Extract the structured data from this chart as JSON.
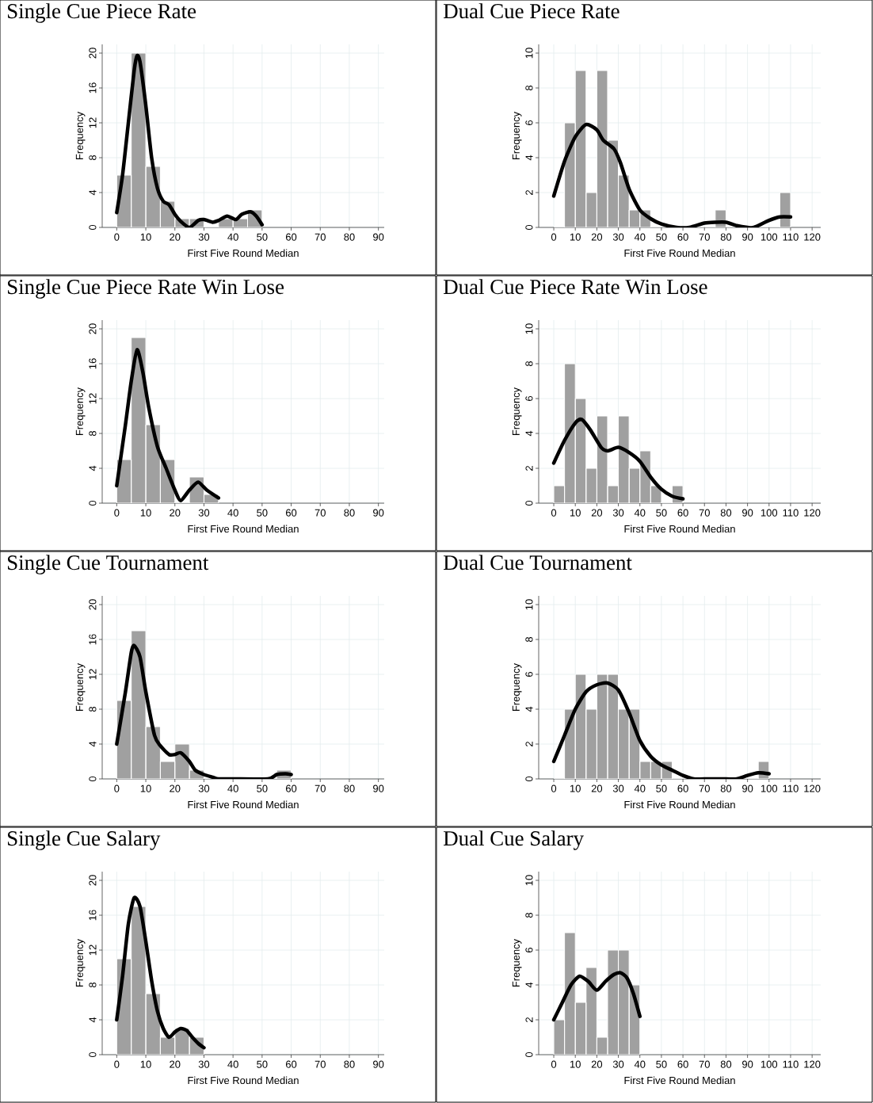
{
  "chart_data": [
    {
      "type": "histogram",
      "title": "Single Cue Piece Rate",
      "xlabel": "First Five Round Median",
      "ylabel": "Frequency",
      "xlim": [
        -5,
        92
      ],
      "ylim": [
        0,
        21
      ],
      "xticks": [
        0,
        10,
        20,
        30,
        40,
        50,
        60,
        70,
        80,
        90
      ],
      "yticks": [
        0,
        4,
        8,
        12,
        16,
        20
      ],
      "grid": true,
      "series": [
        {
          "color": "#a0a0a0",
          "bins": [
            0,
            5,
            10,
            15,
            20,
            25,
            30,
            35,
            40,
            45,
            50
          ],
          "values": [
            6,
            20,
            7,
            3,
            1,
            1,
            0,
            1,
            1,
            2
          ]
        },
        {
          "type": "line",
          "color": "#000000",
          "x": [
            0,
            2,
            4,
            6,
            7,
            8,
            10,
            12,
            14,
            16,
            18,
            20,
            22,
            25,
            28,
            30,
            33,
            35,
            38,
            41,
            43,
            46,
            48,
            50
          ],
          "values": [
            1.7,
            6,
            12,
            18,
            19.7,
            19,
            14,
            8,
            4.5,
            3,
            2.6,
            1.5,
            0.7,
            0,
            0.8,
            0.9,
            0.6,
            0.8,
            1.3,
            0.9,
            1.5,
            1.8,
            1.3,
            0.3
          ]
        }
      ]
    },
    {
      "type": "histogram",
      "title": "Dual Cue Piece Rate",
      "xlabel": "First Five Round Median",
      "ylabel": "Frequency",
      "xlim": [
        -7,
        124
      ],
      "ylim": [
        0,
        10.5
      ],
      "xticks": [
        0,
        10,
        20,
        30,
        40,
        50,
        60,
        70,
        80,
        90,
        100,
        110,
        120
      ],
      "yticks": [
        0,
        2,
        4,
        6,
        8,
        10
      ],
      "grid": true,
      "series": [
        {
          "color": "#a0a0a0",
          "bins": [
            0,
            5,
            10,
            15,
            20,
            25,
            30,
            35,
            40,
            45,
            50,
            55,
            60,
            65,
            70,
            75,
            80,
            85,
            90,
            95,
            100,
            105,
            110
          ],
          "values": [
            0,
            6,
            9,
            2,
            9,
            5,
            3,
            1,
            1,
            0,
            0,
            0,
            0,
            0,
            0,
            1,
            0,
            0,
            0,
            0,
            0,
            2
          ]
        },
        {
          "type": "line",
          "color": "#000000",
          "x": [
            0,
            5,
            10,
            15,
            20,
            23,
            28,
            31,
            35,
            40,
            45,
            50,
            57,
            63,
            70,
            75,
            80,
            85,
            90,
            93,
            100,
            105,
            110
          ],
          "values": [
            1.8,
            3.8,
            5.2,
            5.9,
            5.6,
            5.0,
            4.5,
            3.7,
            2.2,
            1.0,
            0.5,
            0.2,
            0,
            0,
            0.25,
            0.3,
            0.3,
            0.1,
            0,
            0,
            0.4,
            0.6,
            0.6
          ]
        }
      ]
    },
    {
      "type": "histogram",
      "title": "Single Cue Piece Rate Win Lose",
      "xlabel": "First Five Round Median",
      "ylabel": "Frequency",
      "xlim": [
        -5,
        92
      ],
      "ylim": [
        0,
        21
      ],
      "xticks": [
        0,
        10,
        20,
        30,
        40,
        50,
        60,
        70,
        80,
        90
      ],
      "yticks": [
        0,
        4,
        8,
        12,
        16,
        20
      ],
      "grid": true,
      "series": [
        {
          "color": "#a0a0a0",
          "bins": [
            0,
            5,
            10,
            15,
            20,
            25,
            30,
            35
          ],
          "values": [
            5,
            19,
            9,
            5,
            0,
            3,
            1
          ]
        },
        {
          "type": "line",
          "color": "#000000",
          "x": [
            0,
            3,
            5,
            7,
            9,
            11,
            14,
            17,
            20,
            22,
            25,
            28,
            31,
            35
          ],
          "values": [
            2,
            9,
            14,
            17.6,
            15,
            11,
            6.5,
            4,
            1.5,
            0.3,
            1.5,
            2.4,
            1.5,
            0.6
          ]
        }
      ]
    },
    {
      "type": "histogram",
      "title": "Dual Cue Piece Rate Win Lose",
      "xlabel": "First Five Round Median",
      "ylabel": "Frequency",
      "xlim": [
        -7,
        124
      ],
      "ylim": [
        0,
        10.5
      ],
      "xticks": [
        0,
        10,
        20,
        30,
        40,
        50,
        60,
        70,
        80,
        90,
        100,
        110,
        120
      ],
      "yticks": [
        0,
        2,
        4,
        6,
        8,
        10
      ],
      "grid": true,
      "series": [
        {
          "color": "#a0a0a0",
          "bins": [
            0,
            5,
            10,
            15,
            20,
            25,
            30,
            35,
            40,
            45,
            50,
            55,
            60
          ],
          "values": [
            1,
            8,
            6,
            2,
            5,
            1,
            5,
            2,
            3,
            1,
            0,
            1
          ]
        },
        {
          "type": "line",
          "color": "#000000",
          "x": [
            0,
            5,
            10,
            13,
            17,
            22,
            25,
            30,
            35,
            40,
            45,
            50,
            55,
            60
          ],
          "values": [
            2.3,
            3.6,
            4.6,
            4.8,
            4.2,
            3.2,
            3.0,
            3.2,
            2.9,
            2.4,
            1.5,
            0.8,
            0.4,
            0.25
          ]
        }
      ]
    },
    {
      "type": "histogram",
      "title": "Single Cue Tournament",
      "xlabel": "First Five Round Median",
      "ylabel": "Frequency",
      "xlim": [
        -5,
        92
      ],
      "ylim": [
        0,
        21
      ],
      "xticks": [
        0,
        10,
        20,
        30,
        40,
        50,
        60,
        70,
        80,
        90
      ],
      "yticks": [
        0,
        4,
        8,
        12,
        16,
        20
      ],
      "grid": true,
      "series": [
        {
          "color": "#a0a0a0",
          "bins": [
            0,
            5,
            10,
            15,
            20,
            25,
            30,
            35,
            40,
            45,
            50,
            55,
            60
          ],
          "values": [
            9,
            17,
            6,
            2,
            4,
            1,
            0,
            0,
            0,
            0,
            0,
            1
          ]
        },
        {
          "type": "line",
          "color": "#000000",
          "x": [
            0,
            3,
            5,
            6,
            8,
            10,
            13,
            15,
            18,
            20,
            22,
            25,
            27,
            30,
            33,
            35,
            40,
            52,
            55,
            58,
            60
          ],
          "values": [
            4,
            10,
            14.5,
            15.3,
            14,
            10,
            5,
            3.8,
            2.8,
            2.8,
            3,
            2,
            1,
            0.5,
            0.2,
            0,
            0,
            0,
            0.5,
            0.6,
            0.5
          ]
        }
      ]
    },
    {
      "type": "histogram",
      "title": "Dual Cue Tournament",
      "xlabel": "First Five Round Median",
      "ylabel": "Frequency",
      "xlim": [
        -7,
        124
      ],
      "ylim": [
        0,
        10.5
      ],
      "xticks": [
        0,
        10,
        20,
        30,
        40,
        50,
        60,
        70,
        80,
        90,
        100,
        110,
        120
      ],
      "yticks": [
        0,
        2,
        4,
        6,
        8,
        10
      ],
      "grid": true,
      "series": [
        {
          "color": "#a0a0a0",
          "bins": [
            0,
            5,
            10,
            15,
            20,
            25,
            30,
            35,
            40,
            45,
            50,
            55,
            60,
            65,
            70,
            75,
            80,
            85,
            90,
            95,
            100
          ],
          "values": [
            0,
            4,
            6,
            4,
            6,
            6,
            4,
            4,
            1,
            1,
            1,
            0,
            0,
            0,
            0,
            0,
            0,
            0,
            0,
            1
          ]
        },
        {
          "type": "line",
          "color": "#000000",
          "x": [
            0,
            5,
            10,
            15,
            20,
            25,
            30,
            35,
            40,
            45,
            50,
            55,
            60,
            65,
            70,
            80,
            85,
            90,
            95,
            100
          ],
          "values": [
            1,
            2.5,
            4,
            5,
            5.4,
            5.5,
            5.1,
            3.8,
            2.2,
            1.3,
            0.8,
            0.5,
            0.2,
            0,
            0,
            0,
            0,
            0.2,
            0.35,
            0.3
          ]
        }
      ]
    },
    {
      "type": "histogram",
      "title": "Single Cue Salary",
      "xlabel": "First Five Round Median",
      "ylabel": "Frequency",
      "xlim": [
        -5,
        92
      ],
      "ylim": [
        0,
        21
      ],
      "xticks": [
        0,
        10,
        20,
        30,
        40,
        50,
        60,
        70,
        80,
        90
      ],
      "yticks": [
        0,
        4,
        8,
        12,
        16,
        20
      ],
      "grid": true,
      "series": [
        {
          "color": "#a0a0a0",
          "bins": [
            0,
            5,
            10,
            15,
            20,
            25,
            30
          ],
          "values": [
            11,
            17,
            7,
            2,
            3,
            2
          ]
        },
        {
          "type": "line",
          "color": "#000000",
          "x": [
            0,
            2,
            4,
            6,
            8,
            10,
            12,
            14,
            16,
            18,
            20,
            22,
            24,
            26,
            28,
            30
          ],
          "values": [
            4,
            9,
            15,
            18,
            17,
            13,
            8.5,
            5,
            3,
            2,
            2.6,
            3,
            2.8,
            2,
            1.3,
            0.8
          ]
        }
      ]
    },
    {
      "type": "histogram",
      "title": "Dual Cue Salary",
      "xlabel": "First Five Round Median",
      "ylabel": "Frequency",
      "xlim": [
        -7,
        124
      ],
      "ylim": [
        0,
        10.5
      ],
      "xticks": [
        0,
        10,
        20,
        30,
        40,
        50,
        60,
        70,
        80,
        90,
        100,
        110,
        120
      ],
      "yticks": [
        0,
        2,
        4,
        6,
        8,
        10
      ],
      "grid": true,
      "series": [
        {
          "color": "#a0a0a0",
          "bins": [
            0,
            5,
            10,
            15,
            20,
            25,
            30,
            35,
            40
          ],
          "values": [
            2,
            7,
            3,
            5,
            1,
            6,
            6,
            4
          ]
        },
        {
          "type": "line",
          "color": "#000000",
          "x": [
            0,
            4,
            8,
            12,
            16,
            20,
            24,
            28,
            31,
            34,
            37,
            40
          ],
          "values": [
            2,
            3,
            4,
            4.5,
            4.2,
            3.7,
            4.2,
            4.6,
            4.7,
            4.4,
            3.5,
            2.2
          ]
        }
      ]
    }
  ]
}
